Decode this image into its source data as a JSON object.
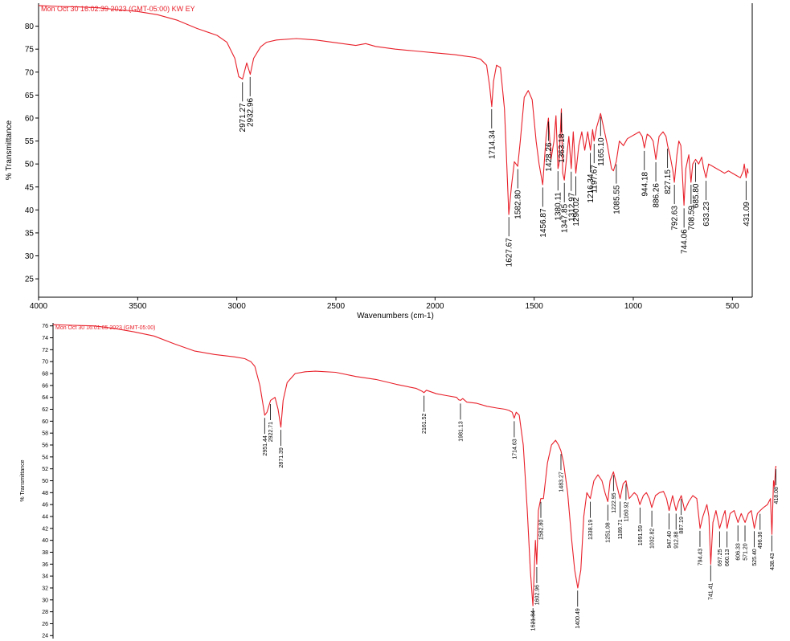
{
  "chart_data": [
    {
      "type": "line",
      "header": "Mon Oct 30 16:02:39 2023 (GMT-05:00) KW EY",
      "xlabel": "Wavenumbers (cm-1)",
      "ylabel": "% Transmittance",
      "xlim": [
        4000,
        400
      ],
      "ylim": [
        21,
        85
      ],
      "x_ticks": [
        4000,
        3500,
        3000,
        2500,
        2000,
        1500,
        1000,
        500
      ],
      "y_ticks": [
        25,
        30,
        35,
        40,
        45,
        50,
        55,
        60,
        65,
        70,
        75,
        80
      ],
      "grid": false,
      "series": [
        {
          "color": "#e8202a",
          "x": [
            4000,
            3900,
            3800,
            3700,
            3600,
            3500,
            3400,
            3300,
            3200,
            3100,
            3050,
            3010,
            2990,
            2971,
            2950,
            2932,
            2915,
            2880,
            2850,
            2800,
            2700,
            2600,
            2500,
            2400,
            2350,
            2300,
            2200,
            2100,
            2000,
            1900,
            1850,
            1800,
            1770,
            1740,
            1725,
            1714,
            1705,
            1690,
            1670,
            1650,
            1640,
            1628,
            1615,
            1600,
            1583,
            1570,
            1550,
            1530,
            1510,
            1490,
            1475,
            1457,
            1440,
            1428,
            1415,
            1400,
            1390,
            1380,
            1375,
            1363,
            1356,
            1348,
            1335,
            1325,
            1313,
            1303,
            1290,
            1275,
            1260,
            1245,
            1230,
            1216,
            1205,
            1198,
            1185,
            1165,
            1150,
            1130,
            1110,
            1100,
            1086,
            1070,
            1050,
            1030,
            1010,
            990,
            970,
            955,
            944,
            930,
            915,
            900,
            886,
            870,
            850,
            835,
            827,
            815,
            800,
            793,
            780,
            770,
            760,
            744,
            735,
            725,
            720,
            709,
            700,
            686,
            670,
            655,
            645,
            633,
            620,
            600,
            580,
            560,
            540,
            520,
            500,
            480,
            460,
            445,
            440,
            431,
            425,
            420
          ],
          "y": [
            84.5,
            84.3,
            84.2,
            84.0,
            83.6,
            83.2,
            82.5,
            81.3,
            79.5,
            78.0,
            76.5,
            73.0,
            69.0,
            68.5,
            72.0,
            69.5,
            73.0,
            75.5,
            76.5,
            77.0,
            77.3,
            77.0,
            76.4,
            75.8,
            76.2,
            75.6,
            75.0,
            74.6,
            74.2,
            73.8,
            73.5,
            73.2,
            72.8,
            71.5,
            67.0,
            62.5,
            68.0,
            71.5,
            71.0,
            62.0,
            52.0,
            39.0,
            45.0,
            50.5,
            49.5,
            55.0,
            64.5,
            66.0,
            64.0,
            55.0,
            50.0,
            45.5,
            56.0,
            60.0,
            51.0,
            55.0,
            60.5,
            49.0,
            50.0,
            62.0,
            48.0,
            46.5,
            52.0,
            56.0,
            49.0,
            57.0,
            48.0,
            54.0,
            57.0,
            53.0,
            57.0,
            53.0,
            57.5,
            55.0,
            58.0,
            61.0,
            58.0,
            54.0,
            49.0,
            48.5,
            50.5,
            55.0,
            54.0,
            55.5,
            56.0,
            56.5,
            57.0,
            56.0,
            53.5,
            56.5,
            56.0,
            55.0,
            51.0,
            56.0,
            57.0,
            56.0,
            54.0,
            52.0,
            48.5,
            46.0,
            52.0,
            55.0,
            54.0,
            41.0,
            49.0,
            51.0,
            52.0,
            46.0,
            50.0,
            51.0,
            50.0,
            51.5,
            49.0,
            47.0,
            50.0,
            49.5,
            49.0,
            48.5,
            48.0,
            48.5,
            48.0,
            47.5,
            47.0,
            48.5,
            50.0,
            47.0,
            49.0,
            48.0
          ]
        }
      ],
      "peak_labels": [
        {
          "x": 2971.27,
          "label": "2971.27"
        },
        {
          "x": 2932.96,
          "label": "2932.96"
        },
        {
          "x": 1714.34,
          "label": "1714.34"
        },
        {
          "x": 1627.67,
          "label": "1627.67"
        },
        {
          "x": 1582.8,
          "label": "1582.80"
        },
        {
          "x": 1456.87,
          "label": "1456.87"
        },
        {
          "x": 1428.26,
          "label": "1428.26"
        },
        {
          "x": 1380.11,
          "label": "1380.11"
        },
        {
          "x": 1363.18,
          "label": "1363.18"
        },
        {
          "x": 1347.85,
          "label": "1347.85"
        },
        {
          "x": 1312.97,
          "label": "1312.97"
        },
        {
          "x": 1290.02,
          "label": "1290.02"
        },
        {
          "x": 1216.34,
          "label": "1216.34"
        },
        {
          "x": 1197.67,
          "label": "1197.67"
        },
        {
          "x": 1165.1,
          "label": "1165.10"
        },
        {
          "x": 1085.55,
          "label": "1085.55"
        },
        {
          "x": 944.18,
          "label": "944.18"
        },
        {
          "x": 886.26,
          "label": "886.26"
        },
        {
          "x": 827.15,
          "label": "827.15"
        },
        {
          "x": 792.63,
          "label": "792.63"
        },
        {
          "x": 744.06,
          "label": "744.06"
        },
        {
          "x": 708.59,
          "label": "708.59"
        },
        {
          "x": 685.8,
          "label": "685.80"
        },
        {
          "x": 633.23,
          "label": "633.23"
        },
        {
          "x": 431.09,
          "label": "431.09"
        }
      ]
    },
    {
      "type": "line",
      "header": "Mon Oct 30 16:01:05 2023 (GMT-05:00)",
      "xlabel": "",
      "ylabel": "% Transmittance",
      "xlim": [
        4000,
        400
      ],
      "ylim": [
        23.5,
        76.5
      ],
      "x_ticks": [],
      "y_ticks": [
        24,
        26,
        28,
        30,
        32,
        34,
        36,
        38,
        40,
        42,
        44,
        46,
        48,
        50,
        52,
        54,
        56,
        58,
        60,
        62,
        64,
        66,
        68,
        70,
        72,
        74,
        76
      ],
      "grid": false,
      "series": [
        {
          "color": "#e8202a",
          "x": [
            4000,
            3900,
            3800,
            3700,
            3600,
            3500,
            3400,
            3300,
            3200,
            3100,
            3050,
            3020,
            3000,
            2975,
            2951,
            2940,
            2922,
            2900,
            2885,
            2871,
            2860,
            2840,
            2800,
            2750,
            2700,
            2600,
            2500,
            2400,
            2300,
            2200,
            2170,
            2162,
            2150,
            2100,
            2050,
            2000,
            1990,
            1981,
            1970,
            1950,
            1900,
            1850,
            1800,
            1760,
            1740,
            1725,
            1715,
            1705,
            1690,
            1670,
            1650,
            1635,
            1622,
            1610,
            1603,
            1595,
            1583,
            1570,
            1550,
            1530,
            1510,
            1495,
            1483,
            1470,
            1450,
            1430,
            1415,
            1400,
            1385,
            1370,
            1355,
            1338,
            1320,
            1300,
            1280,
            1265,
            1251,
            1240,
            1223,
            1205,
            1190,
            1175,
            1161,
            1145,
            1120,
            1105,
            1092,
            1075,
            1060,
            1045,
            1033,
            1015,
            995,
            975,
            960,
            947,
            930,
            913,
            900,
            887,
            870,
            850,
            830,
            810,
            794,
            780,
            760,
            750,
            741,
            730,
            715,
            697,
            680,
            670,
            660,
            645,
            625,
            606,
            590,
            571,
            555,
            540,
            525,
            510,
            496,
            480,
            460,
            445,
            438,
            430,
            425,
            420,
            418
          ],
          "y": [
            76.2,
            76.1,
            76.0,
            75.6,
            75.0,
            74.3,
            73.0,
            71.8,
            71.2,
            70.8,
            70.5,
            70.0,
            69.2,
            66.0,
            61.0,
            61.5,
            63.5,
            64.0,
            62.0,
            59.0,
            63.5,
            66.5,
            68.0,
            68.3,
            68.4,
            68.2,
            67.5,
            67.0,
            66.2,
            65.5,
            65.0,
            64.8,
            65.2,
            64.6,
            64.3,
            64.0,
            63.6,
            63.5,
            63.8,
            63.2,
            63.0,
            62.5,
            62.2,
            62.0,
            61.8,
            61.5,
            60.5,
            61.5,
            61.0,
            56.0,
            45.0,
            35.0,
            29.0,
            40.0,
            36.0,
            45.0,
            47.0,
            47.0,
            53.0,
            56.0,
            56.8,
            56.0,
            55.0,
            53.0,
            48.0,
            40.0,
            35.0,
            32.0,
            35.0,
            44.0,
            48.0,
            47.0,
            50.0,
            51.0,
            50.0,
            48.0,
            46.5,
            50.0,
            51.5,
            49.0,
            47.0,
            49.5,
            50.0,
            47.0,
            48.0,
            47.5,
            46.0,
            47.5,
            48.0,
            47.0,
            45.5,
            47.5,
            48.0,
            48.2,
            47.0,
            45.0,
            47.5,
            45.0,
            46.5,
            47.5,
            45.0,
            46.5,
            47.5,
            47.0,
            42.0,
            44.0,
            46.0,
            44.0,
            36.0,
            43.0,
            45.0,
            42.0,
            44.0,
            45.0,
            42.0,
            44.5,
            45.0,
            43.0,
            44.5,
            43.0,
            44.5,
            45.0,
            42.0,
            44.5,
            45.0,
            45.5,
            46.0,
            47.0,
            41.0,
            50.0,
            49.0,
            52.0,
            52.5
          ]
        }
      ],
      "peak_labels": [
        {
          "x": 2951.44,
          "label": "2951.44"
        },
        {
          "x": 2922.71,
          "label": "2922.71"
        },
        {
          "x": 2871.39,
          "label": "2871.39"
        },
        {
          "x": 2161.52,
          "label": "2161.52"
        },
        {
          "x": 1981.13,
          "label": "1981.13"
        },
        {
          "x": 1714.63,
          "label": "1714.63"
        },
        {
          "x": 1621.84,
          "label": "1621.84"
        },
        {
          "x": 1602.96,
          "label": "1602.96"
        },
        {
          "x": 1582.8,
          "label": "1582.80"
        },
        {
          "x": 1483.27,
          "label": "1483.27"
        },
        {
          "x": 1400.49,
          "label": "1400.49"
        },
        {
          "x": 1338.19,
          "label": "1338.19"
        },
        {
          "x": 1251.08,
          "label": "1251.08"
        },
        {
          "x": 1222.95,
          "label": "1222.95"
        },
        {
          "x": 1189.71,
          "label": "1189.71"
        },
        {
          "x": 1160.92,
          "label": "1160.92"
        },
        {
          "x": 1091.59,
          "label": "1091.59"
        },
        {
          "x": 1032.82,
          "label": "1032.82"
        },
        {
          "x": 947.4,
          "label": "947.40"
        },
        {
          "x": 912.88,
          "label": "912.88"
        },
        {
          "x": 887.19,
          "label": "887.19"
        },
        {
          "x": 794.43,
          "label": "794.43"
        },
        {
          "x": 741.41,
          "label": "741.41"
        },
        {
          "x": 697.25,
          "label": "697.25"
        },
        {
          "x": 660.13,
          "label": "660.13"
        },
        {
          "x": 606.33,
          "label": "606.33"
        },
        {
          "x": 571.2,
          "label": "571.20"
        },
        {
          "x": 525.4,
          "label": "525.40"
        },
        {
          "x": 496.36,
          "label": "496.36"
        },
        {
          "x": 438.43,
          "label": "438.43"
        },
        {
          "x": 418.08,
          "label": "418.08"
        }
      ]
    }
  ]
}
